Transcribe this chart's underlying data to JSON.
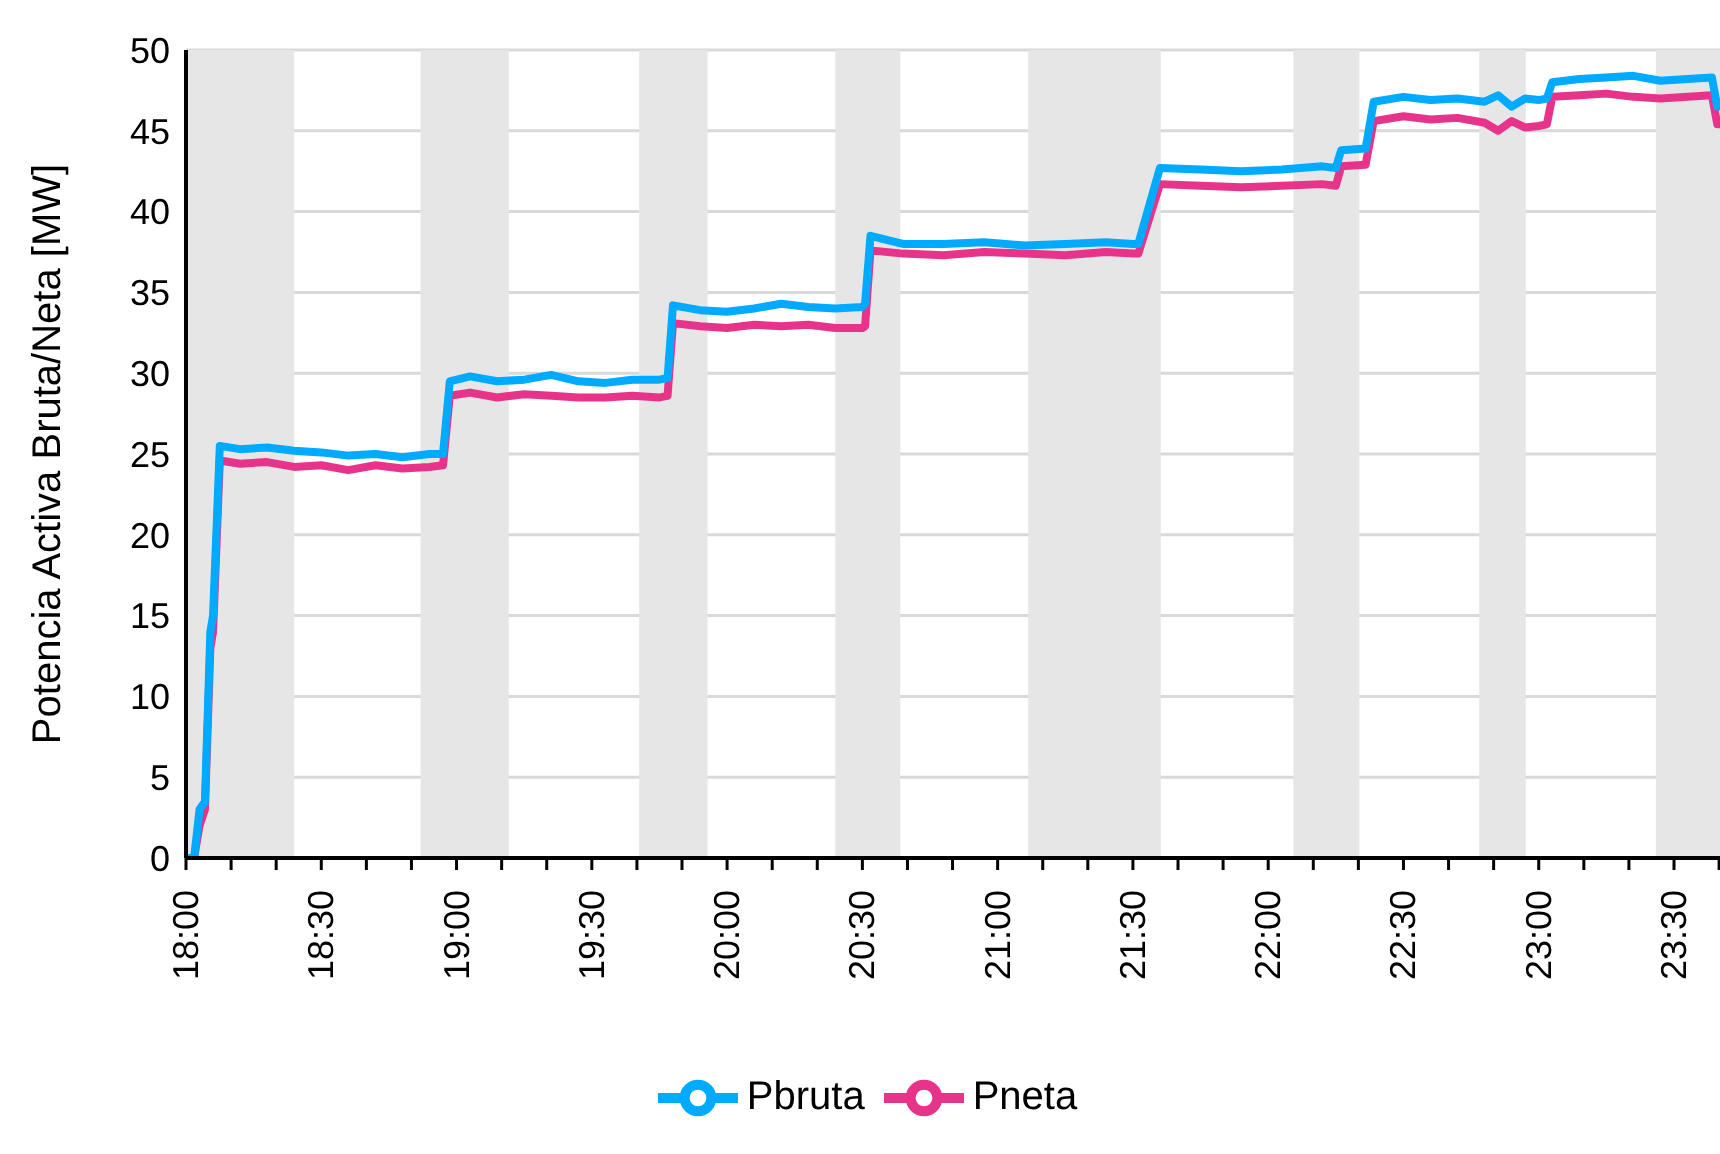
{
  "chart_data": {
    "type": "line",
    "ylabel": "Potencia Activa Bruta/Neta [MW]",
    "x": [
      18.0,
      18.03,
      18.05,
      18.07,
      18.09,
      18.1,
      18.125,
      18.2,
      18.3,
      18.4,
      18.5,
      18.6,
      18.7,
      18.8,
      18.9,
      18.95,
      18.975,
      19.05,
      19.15,
      19.25,
      19.35,
      19.45,
      19.55,
      19.65,
      19.75,
      19.78,
      19.8,
      19.9,
      20.0,
      20.1,
      20.2,
      20.3,
      20.4,
      20.5,
      20.51,
      20.53,
      20.65,
      20.8,
      20.95,
      21.1,
      21.25,
      21.4,
      21.5,
      21.52,
      21.6,
      21.75,
      21.9,
      22.05,
      22.2,
      22.25,
      22.27,
      22.36,
      22.39,
      22.5,
      22.6,
      22.7,
      22.8,
      22.85,
      22.9,
      22.95,
      23.0,
      23.03,
      23.05,
      23.15,
      23.25,
      23.35,
      23.45,
      23.55,
      23.64,
      23.66,
      23.67
    ],
    "series": [
      {
        "name": "Pneta",
        "color": "#e8338a",
        "values": [
          0,
          0,
          2,
          3,
          13,
          14,
          24.6,
          24.4,
          24.5,
          24.2,
          24.3,
          24.0,
          24.3,
          24.1,
          24.2,
          24.3,
          28.6,
          28.8,
          28.5,
          28.7,
          28.6,
          28.5,
          28.5,
          28.6,
          28.5,
          28.6,
          33.1,
          32.9,
          32.8,
          33.0,
          32.9,
          33.0,
          32.8,
          32.8,
          32.9,
          37.6,
          37.4,
          37.3,
          37.5,
          37.4,
          37.3,
          37.5,
          37.4,
          37.4,
          41.7,
          41.6,
          41.5,
          41.6,
          41.7,
          41.6,
          42.8,
          42.9,
          45.6,
          45.9,
          45.7,
          45.8,
          45.5,
          45.0,
          45.6,
          45.2,
          45.3,
          45.4,
          47.1,
          47.2,
          47.3,
          47.1,
          47.0,
          47.1,
          47.2,
          45.4,
          45.4
        ]
      },
      {
        "name": "Pbruta",
        "color": "#00aaff",
        "values": [
          0,
          0,
          3,
          3.5,
          14,
          15,
          25.5,
          25.3,
          25.4,
          25.2,
          25.1,
          24.9,
          25.0,
          24.8,
          25.0,
          25.0,
          29.5,
          29.8,
          29.5,
          29.6,
          29.9,
          29.5,
          29.4,
          29.6,
          29.6,
          29.7,
          34.2,
          33.9,
          33.8,
          34.0,
          34.3,
          34.1,
          34.0,
          34.1,
          34.3,
          38.5,
          38.0,
          38.0,
          38.1,
          37.9,
          38.0,
          38.1,
          38.0,
          38.0,
          42.7,
          42.6,
          42.5,
          42.6,
          42.8,
          42.7,
          43.8,
          43.9,
          46.8,
          47.1,
          46.9,
          47.0,
          46.8,
          47.2,
          46.5,
          47.0,
          46.9,
          47.0,
          48.0,
          48.2,
          48.3,
          48.4,
          48.1,
          48.2,
          48.3,
          46.5,
          46.5
        ]
      }
    ],
    "xlim": [
      18,
      23.67
    ],
    "xticks": [
      {
        "value": 18,
        "label": "18:00"
      },
      {
        "value": 18.1667,
        "label": null
      },
      {
        "value": 18.3333,
        "label": null
      },
      {
        "value": 18.5,
        "label": "18:30"
      },
      {
        "value": 18.6667,
        "label": null
      },
      {
        "value": 18.8333,
        "label": null
      },
      {
        "value": 19,
        "label": "19:00"
      },
      {
        "value": 19.1667,
        "label": null
      },
      {
        "value": 19.3333,
        "label": null
      },
      {
        "value": 19.5,
        "label": "19:30"
      },
      {
        "value": 19.6667,
        "label": null
      },
      {
        "value": 19.8333,
        "label": null
      },
      {
        "value": 20,
        "label": "20:00"
      },
      {
        "value": 20.1667,
        "label": null
      },
      {
        "value": 20.3333,
        "label": null
      },
      {
        "value": 20.5,
        "label": "20:30"
      },
      {
        "value": 20.6667,
        "label": null
      },
      {
        "value": 20.8333,
        "label": null
      },
      {
        "value": 21,
        "label": "21:00"
      },
      {
        "value": 21.1667,
        "label": null
      },
      {
        "value": 21.3333,
        "label": null
      },
      {
        "value": 21.5,
        "label": "21:30"
      },
      {
        "value": 21.6667,
        "label": null
      },
      {
        "value": 21.8333,
        "label": null
      },
      {
        "value": 22,
        "label": "22:00"
      },
      {
        "value": 22.1667,
        "label": null
      },
      {
        "value": 22.3333,
        "label": null
      },
      {
        "value": 22.5,
        "label": "22:30"
      },
      {
        "value": 22.6667,
        "label": null
      },
      {
        "value": 22.8333,
        "label": null
      },
      {
        "value": 23,
        "label": "23:00"
      },
      {
        "value": 23.1667,
        "label": null
      },
      {
        "value": 23.3333,
        "label": null
      },
      {
        "value": 23.5,
        "label": "23:30"
      },
      {
        "value": 23.6667,
        "label": null
      }
    ],
    "ylim": [
      0,
      50
    ],
    "yticks": [
      0,
      5,
      10,
      15,
      20,
      25,
      30,
      35,
      40,
      45,
      50
    ],
    "bands": [
      {
        "axis": "x",
        "from": 18.0,
        "to": 18.4,
        "color": "#e6e6e6"
      },
      {
        "axis": "x",
        "from": 18.867,
        "to": 19.193,
        "color": "#e6e6e6"
      },
      {
        "axis": "x",
        "from": 19.675,
        "to": 19.928,
        "color": "#e6e6e6"
      },
      {
        "axis": "x",
        "from": 20.4,
        "to": 20.64,
        "color": "#e6e6e6"
      },
      {
        "axis": "x",
        "from": 21.113,
        "to": 21.603,
        "color": "#e6e6e6"
      },
      {
        "axis": "x",
        "from": 22.093,
        "to": 22.337,
        "color": "#e6e6e6"
      },
      {
        "axis": "x",
        "from": 22.78,
        "to": 22.952,
        "color": "#e6e6e6"
      },
      {
        "axis": "x",
        "from": 23.433,
        "to": 23.67,
        "color": "#e6e6e6"
      }
    ],
    "grid": "y",
    "legend": "bottom",
    "marker": "none",
    "line_style": "solid"
  }
}
